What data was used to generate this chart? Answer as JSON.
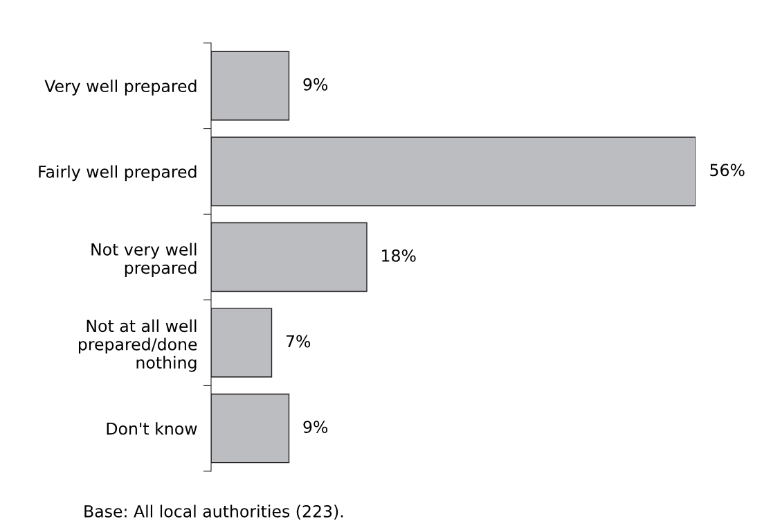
{
  "chart_data": {
    "type": "bar",
    "orientation": "horizontal",
    "categories": [
      "Very well prepared",
      "Fairly well prepared",
      "Not very well\nprepared",
      "Not at all well\nprepared/done\nnothing",
      "Don't know"
    ],
    "values": [
      9,
      56,
      18,
      7,
      9
    ],
    "value_labels": [
      "9%",
      "56%",
      "18%",
      "7%",
      "9%"
    ],
    "color": "#bcbdc0",
    "grid": false,
    "legend": false,
    "tick_labels": "y",
    "annotations": [
      "Base: All local authorities (223)."
    ]
  }
}
